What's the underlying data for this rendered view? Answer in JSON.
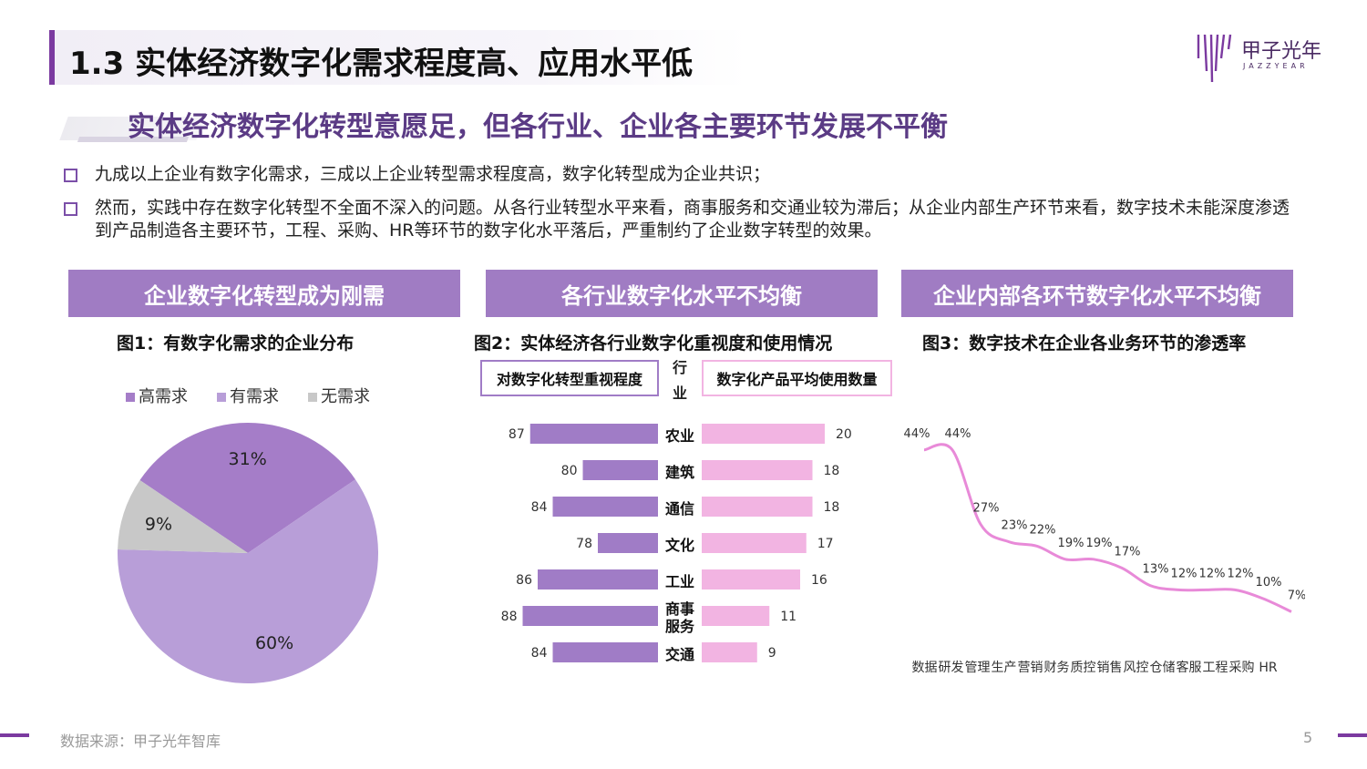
{
  "header": {
    "title": "1.3 实体经济数字化需求程度高、应用水平低",
    "subtitle": "实体经济数字化转型意愿足，但各行业、企业各主要环节发展不平衡",
    "logo_cn": "甲子光年",
    "logo_en": "JAZZYEAR"
  },
  "bullets": [
    "九成以上企业有数字化需求，三成以上企业转型需求程度高，数字化转型成为企业共识；",
    "然而，实践中存在数字化转型不全面不深入的问题。从各行业转型水平来看，商事服务和交通业较为滞后；从企业内部生产环节来看，数字技术未能深度渗透到产品制造各主要环节，工程、采购、HR等环节的数字化水平落后，严重制约了企业数字转型的效果。"
  ],
  "sections": [
    {
      "heading": "企业数字化转型成为刚需"
    },
    {
      "heading": "各行业数字化水平不均衡"
    },
    {
      "heading": "企业内部各环节数字化水平不均衡"
    }
  ],
  "footer": {
    "source": "数据来源：甲子光年智库",
    "page": "5"
  },
  "colors": {
    "accent": "#7b3aa0",
    "section_bg": "#a07cc3",
    "pie_high": "#a57dc8",
    "pie_mid": "#b89ed8",
    "pie_none": "#c8c8c8",
    "bar_left": "#a07cc6",
    "bar_right": "#f2b4e2",
    "line": "#e88ad8"
  },
  "chart_data": [
    {
      "type": "pie",
      "title": "图1：有数字化需求的企业分布",
      "categories": [
        "高需求",
        "有需求",
        "无需求"
      ],
      "values": [
        31,
        60,
        9
      ],
      "labels": [
        "31%",
        "60%",
        "9%"
      ],
      "legend": "top"
    },
    {
      "type": "bar",
      "title": "图2：实体经济各行业数字化重视度和使用情况",
      "center_header": "行业",
      "left_header": "对数字化转型重视程度",
      "right_header": "数字化产品平均使用数量",
      "categories": [
        "农业",
        "建筑",
        "通信",
        "文化",
        "工业",
        "商事服务",
        "交通"
      ],
      "series": [
        {
          "name": "对数字化转型重视程度",
          "values": [
            87,
            80,
            84,
            78,
            86,
            88,
            84
          ]
        },
        {
          "name": "数字化产品平均使用数量",
          "values": [
            20,
            18,
            18,
            17,
            16,
            11,
            9
          ]
        }
      ]
    },
    {
      "type": "line",
      "title": "图3：数字技术在企业各业务环节的渗透率",
      "categories": [
        "数据",
        "研发",
        "管理",
        "生产",
        "营销",
        "财务",
        "质控",
        "销售",
        "风控",
        "仓储",
        "客服",
        "工程",
        "采购",
        "HR"
      ],
      "values": [
        44,
        44,
        27,
        23,
        22,
        19,
        19,
        17,
        13,
        12,
        12,
        12,
        10,
        7
      ],
      "labels": [
        "44%",
        "44%",
        "27%",
        "23%",
        "22%",
        "19%",
        "19%",
        "17%",
        "13%",
        "12%",
        "12%",
        "12%",
        "10%",
        "7%"
      ],
      "ylim": [
        0,
        50
      ]
    }
  ]
}
